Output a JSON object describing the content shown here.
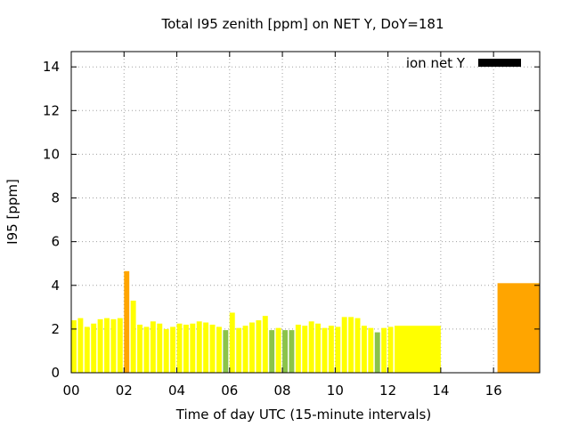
{
  "chart_data": {
    "type": "bar",
    "title": "Total I95 zenith [ppm] on NET Y, DoY=181",
    "xlabel": "Time of day UTC (15-minute intervals)",
    "ylabel": "I95 [ppm]",
    "xlim": [
      0,
      17.75
    ],
    "ylim": [
      0,
      14.7
    ],
    "xticks": [
      "00",
      "02",
      "04",
      "06",
      "08",
      "10",
      "12",
      "14",
      "16"
    ],
    "yticks": [
      "0",
      "2",
      "4",
      "6",
      "8",
      "10",
      "12",
      "14"
    ],
    "grid": true,
    "legend": {
      "position": "top-right",
      "label": "ion net Y",
      "color": "#000000"
    },
    "colors": {
      "yellow": "#ffff00",
      "orange": "#ffa500",
      "green": "#8bc34a"
    },
    "series": [
      {
        "values": [
          {
            "x": 0.0,
            "width": 0.2,
            "y": 2.4,
            "color": "yellow"
          },
          {
            "x": 0.25,
            "width": 0.2,
            "y": 2.5,
            "color": "yellow"
          },
          {
            "x": 0.5,
            "width": 0.2,
            "y": 2.1,
            "color": "yellow"
          },
          {
            "x": 0.75,
            "width": 0.2,
            "y": 2.25,
            "color": "yellow"
          },
          {
            "x": 1.0,
            "width": 0.2,
            "y": 2.45,
            "color": "yellow"
          },
          {
            "x": 1.25,
            "width": 0.2,
            "y": 2.5,
            "color": "yellow"
          },
          {
            "x": 1.5,
            "width": 0.2,
            "y": 2.45,
            "color": "yellow"
          },
          {
            "x": 1.75,
            "width": 0.2,
            "y": 2.5,
            "color": "yellow"
          },
          {
            "x": 2.0,
            "width": 0.2,
            "y": 4.65,
            "color": "orange"
          },
          {
            "x": 2.25,
            "width": 0.2,
            "y": 3.3,
            "color": "yellow"
          },
          {
            "x": 2.5,
            "width": 0.2,
            "y": 2.2,
            "color": "yellow"
          },
          {
            "x": 2.75,
            "width": 0.2,
            "y": 2.1,
            "color": "yellow"
          },
          {
            "x": 3.0,
            "width": 0.2,
            "y": 2.35,
            "color": "yellow"
          },
          {
            "x": 3.25,
            "width": 0.2,
            "y": 2.25,
            "color": "yellow"
          },
          {
            "x": 3.5,
            "width": 0.2,
            "y": 2.0,
            "color": "yellow"
          },
          {
            "x": 3.75,
            "width": 0.2,
            "y": 2.1,
            "color": "yellow"
          },
          {
            "x": 4.0,
            "width": 0.2,
            "y": 2.25,
            "color": "yellow"
          },
          {
            "x": 4.25,
            "width": 0.2,
            "y": 2.2,
            "color": "yellow"
          },
          {
            "x": 4.5,
            "width": 0.2,
            "y": 2.25,
            "color": "yellow"
          },
          {
            "x": 4.75,
            "width": 0.2,
            "y": 2.35,
            "color": "yellow"
          },
          {
            "x": 5.0,
            "width": 0.2,
            "y": 2.3,
            "color": "yellow"
          },
          {
            "x": 5.25,
            "width": 0.2,
            "y": 2.2,
            "color": "yellow"
          },
          {
            "x": 5.5,
            "width": 0.2,
            "y": 2.1,
            "color": "yellow"
          },
          {
            "x": 5.75,
            "width": 0.2,
            "y": 1.95,
            "color": "green"
          },
          {
            "x": 6.0,
            "width": 0.2,
            "y": 2.75,
            "color": "yellow"
          },
          {
            "x": 6.25,
            "width": 0.2,
            "y": 2.05,
            "color": "yellow"
          },
          {
            "x": 6.5,
            "width": 0.2,
            "y": 2.15,
            "color": "yellow"
          },
          {
            "x": 6.75,
            "width": 0.2,
            "y": 2.3,
            "color": "yellow"
          },
          {
            "x": 7.0,
            "width": 0.2,
            "y": 2.4,
            "color": "yellow"
          },
          {
            "x": 7.25,
            "width": 0.2,
            "y": 2.6,
            "color": "yellow"
          },
          {
            "x": 7.5,
            "width": 0.2,
            "y": 1.95,
            "color": "green"
          },
          {
            "x": 7.75,
            "width": 0.2,
            "y": 2.05,
            "color": "yellow"
          },
          {
            "x": 8.0,
            "width": 0.2,
            "y": 1.95,
            "color": "green"
          },
          {
            "x": 8.25,
            "width": 0.2,
            "y": 1.95,
            "color": "green"
          },
          {
            "x": 8.5,
            "width": 0.2,
            "y": 2.2,
            "color": "yellow"
          },
          {
            "x": 8.75,
            "width": 0.2,
            "y": 2.15,
            "color": "yellow"
          },
          {
            "x": 9.0,
            "width": 0.2,
            "y": 2.35,
            "color": "yellow"
          },
          {
            "x": 9.25,
            "width": 0.2,
            "y": 2.25,
            "color": "yellow"
          },
          {
            "x": 9.5,
            "width": 0.2,
            "y": 2.05,
            "color": "yellow"
          },
          {
            "x": 9.75,
            "width": 0.2,
            "y": 2.15,
            "color": "yellow"
          },
          {
            "x": 10.0,
            "width": 0.2,
            "y": 2.1,
            "color": "yellow"
          },
          {
            "x": 10.25,
            "width": 0.2,
            "y": 2.55,
            "color": "yellow"
          },
          {
            "x": 10.5,
            "width": 0.2,
            "y": 2.55,
            "color": "yellow"
          },
          {
            "x": 10.75,
            "width": 0.2,
            "y": 2.5,
            "color": "yellow"
          },
          {
            "x": 11.0,
            "width": 0.2,
            "y": 2.15,
            "color": "yellow"
          },
          {
            "x": 11.25,
            "width": 0.2,
            "y": 2.05,
            "color": "yellow"
          },
          {
            "x": 11.5,
            "width": 0.2,
            "y": 1.85,
            "color": "green"
          },
          {
            "x": 11.75,
            "width": 0.2,
            "y": 2.05,
            "color": "yellow"
          },
          {
            "x": 12.0,
            "width": 0.2,
            "y": 2.1,
            "color": "yellow"
          },
          {
            "x": 12.25,
            "width": 1.75,
            "y": 2.15,
            "color": "yellow"
          },
          {
            "x": 16.15,
            "width": 1.6,
            "y": 4.1,
            "color": "orange"
          }
        ]
      }
    ]
  }
}
